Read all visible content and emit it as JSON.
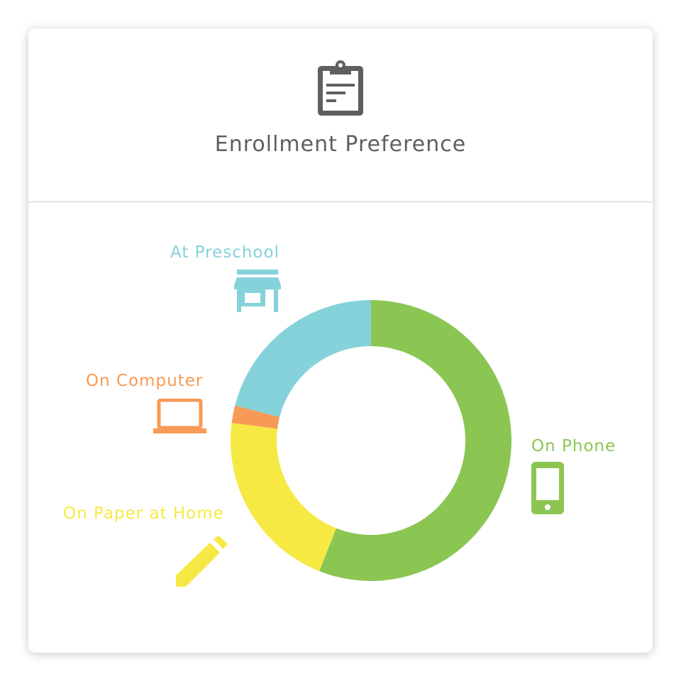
{
  "header": {
    "title": "Enrollment Preference",
    "icon": "clipboard-icon"
  },
  "colors": {
    "header_icon": "#5f5f5f",
    "title": "#5f5f5f"
  },
  "chart_data": {
    "type": "pie",
    "variant": "donut",
    "start": "top",
    "direction": "clockwise",
    "series": [
      {
        "name": "On Phone",
        "value": 56,
        "color": "#8bc653",
        "icon": "phone-icon"
      },
      {
        "name": "On Paper at Home",
        "value": 21,
        "color": "#f7e944",
        "icon": "pencil-icon"
      },
      {
        "name": "On Computer",
        "value": 2,
        "color": "#f79a55",
        "icon": "laptop-icon"
      },
      {
        "name": "At Preschool",
        "value": 21,
        "color": "#85d2da",
        "icon": "storefront-icon"
      }
    ]
  }
}
